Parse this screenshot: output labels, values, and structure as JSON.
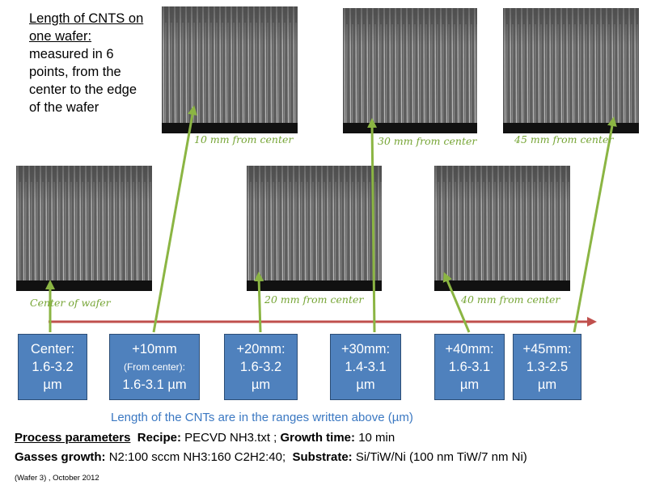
{
  "intro": {
    "title": "Length of CNTS on one wafer:",
    "body": "measured in 6 points, from the center to the edge of the wafer"
  },
  "images": [
    {
      "caption": "Center of wafer"
    },
    {
      "caption": "10 mm from center"
    },
    {
      "caption": "20 mm from center"
    },
    {
      "caption": "30 mm from center"
    },
    {
      "caption": "40 mm from center"
    },
    {
      "caption": "45 mm from center"
    }
  ],
  "boxes": [
    {
      "lines": [
        "Center:",
        "1.6-3.2",
        "µm"
      ]
    },
    {
      "lines": [
        "+10mm",
        "(From center):",
        "1.6-3.1 µm"
      ]
    },
    {
      "lines": [
        "+20mm:",
        "1.6-3.2",
        "µm"
      ]
    },
    {
      "lines": [
        "+30mm:",
        "1.4-3.1",
        "µm"
      ]
    },
    {
      "lines": [
        "+40mm:",
        "1.6-3.1",
        "µm"
      ]
    },
    {
      "lines": [
        "+45mm:",
        "1.3-2.5",
        "µm"
      ]
    }
  ],
  "note": "Length of the CNTs are in the ranges written above (µm)",
  "process": {
    "label": "Process parameters",
    "recipe_label": "Recipe:",
    "recipe": "PECVD NH3.txt ;",
    "growth_label": "Growth time:",
    "growth": "10 min"
  },
  "gasses": {
    "label": "Gasses growth:",
    "value": "N2:100 sccm NH3:160 C2H2:40;",
    "substrate_label": "Substrate:",
    "substrate": "Si/TiW/Ni (100 nm TiW/7 nm Ni)"
  },
  "footer": "(Wafer 3) , October 2012"
}
